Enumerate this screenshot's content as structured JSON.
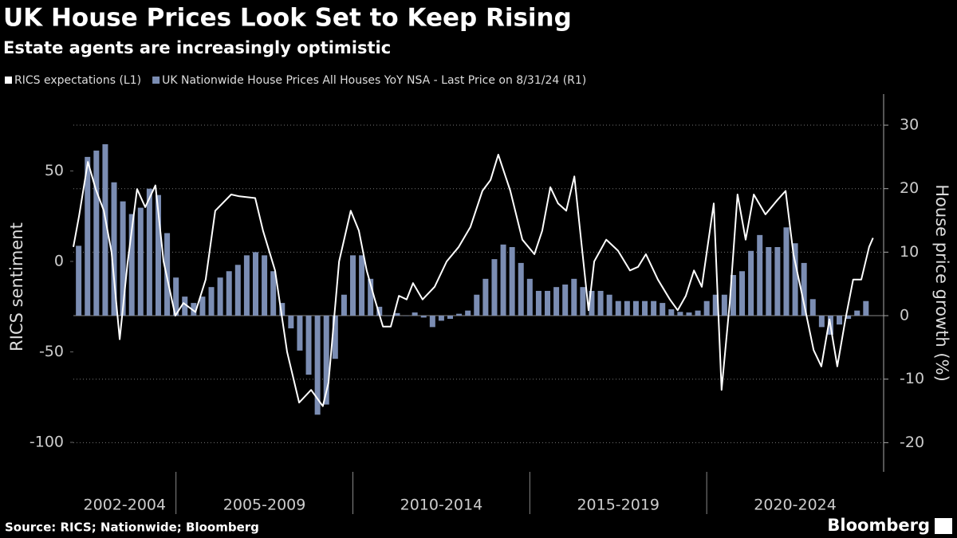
{
  "chart_data": {
    "type": "combo",
    "title": "UK House Prices Look Set to Keep Rising",
    "subtitle": "Estate agents are increasingly optimistic",
    "ylabel": "RICS sentiment",
    "y2label": "House price growth (%)",
    "source": "Source: RICS; Nationwide; Bloomberg",
    "brand": "Bloomberg",
    "xlim": [
      2002.1,
      2025.0
    ],
    "ylim": [
      -116.3,
      92.5
    ],
    "yticks": [
      -100,
      -50,
      0,
      50
    ],
    "y2lim": [
      -24.6,
      34.9
    ],
    "y2ticks": [
      -20,
      -10,
      0,
      10,
      20,
      30
    ],
    "grid": true,
    "x_groups": [
      {
        "label": "2002-2004",
        "range": [
          2002.1,
          2005
        ]
      },
      {
        "label": "2005-2009",
        "range": [
          2005,
          2010
        ]
      },
      {
        "label": "2010-2014",
        "range": [
          2010,
          2015
        ]
      },
      {
        "label": "2015-2019",
        "range": [
          2015,
          2020
        ]
      },
      {
        "label": "2020-2024",
        "range": [
          2020,
          2025
        ]
      }
    ],
    "series": [
      {
        "name": "RICS expectations (L1)",
        "type": "line",
        "axis": "y",
        "color": "#ffffff",
        "x": [
          2002.1,
          2002.26,
          2002.51,
          2002.73,
          2002.96,
          2003.18,
          2003.41,
          2003.63,
          2003.9,
          2004.13,
          2004.42,
          2004.65,
          2004.98,
          2005.21,
          2005.55,
          2005.84,
          2006.11,
          2006.56,
          2006.79,
          2007.24,
          2007.46,
          2007.8,
          2008.14,
          2008.48,
          2008.82,
          2009.15,
          2009.31,
          2009.61,
          2009.94,
          2010.17,
          2010.39,
          2010.62,
          2010.85,
          2011.07,
          2011.3,
          2011.52,
          2011.7,
          2011.97,
          2012.31,
          2012.65,
          2012.99,
          2013.32,
          2013.66,
          2013.89,
          2014.11,
          2014.45,
          2014.79,
          2015.13,
          2015.35,
          2015.58,
          2015.8,
          2016.03,
          2016.26,
          2016.66,
          2016.82,
          2017.16,
          2017.49,
          2017.83,
          2018.06,
          2018.28,
          2018.62,
          2018.96,
          2019.18,
          2019.41,
          2019.64,
          2019.86,
          2020.2,
          2020.42,
          2020.65,
          2020.87,
          2021.1,
          2021.33,
          2021.66,
          2022.0,
          2022.23,
          2022.45,
          2022.79,
          2023.02,
          2023.24,
          2023.47,
          2023.69,
          2023.92,
          2024.14,
          2024.37,
          2024.59,
          2024.7
        ],
        "values": [
          8,
          25,
          55,
          40,
          28,
          5,
          -43,
          -1,
          40,
          30,
          42,
          0,
          -30,
          -23,
          -28,
          -10,
          28,
          37,
          36,
          35,
          17,
          -5,
          -50,
          -78,
          -71,
          -80,
          -67,
          0,
          28,
          17,
          -5,
          -21,
          -36,
          -36,
          -19,
          -21,
          -12,
          -21,
          -14,
          0,
          8,
          19,
          39,
          45,
          59,
          39,
          12,
          4,
          17,
          41,
          32,
          28,
          47,
          -27,
          0,
          12,
          6,
          -5,
          -3,
          4,
          -10,
          -21,
          -27,
          -19,
          -5,
          -14,
          32,
          -71,
          -23,
          37,
          12,
          37,
          26,
          34,
          39,
          4,
          -27,
          -49,
          -58,
          -32,
          -58,
          -32,
          -10,
          -10,
          8,
          13
        ]
      },
      {
        "name": "UK Nationwide House Prices All Houses YoY NSA - Last Price on 8/31/24 (R1)",
        "type": "bar",
        "axis": "y2",
        "color": "#7b8db3",
        "x": [
          2002.25,
          2002.5,
          2002.75,
          2003.0,
          2003.25,
          2003.5,
          2003.75,
          2004.0,
          2004.25,
          2004.5,
          2004.75,
          2005.0,
          2005.25,
          2005.5,
          2005.75,
          2006.0,
          2006.25,
          2006.5,
          2006.75,
          2007.0,
          2007.25,
          2007.5,
          2007.75,
          2008.0,
          2008.25,
          2008.5,
          2008.75,
          2009.0,
          2009.25,
          2009.5,
          2009.75,
          2010.0,
          2010.25,
          2010.5,
          2010.75,
          2011.0,
          2011.25,
          2011.5,
          2011.75,
          2012.0,
          2012.25,
          2012.5,
          2012.75,
          2013.0,
          2013.25,
          2013.5,
          2013.75,
          2014.0,
          2014.25,
          2014.5,
          2014.75,
          2015.0,
          2015.25,
          2015.5,
          2015.75,
          2016.0,
          2016.25,
          2016.5,
          2016.75,
          2017.0,
          2017.25,
          2017.5,
          2017.75,
          2018.0,
          2018.25,
          2018.5,
          2018.75,
          2019.0,
          2019.25,
          2019.5,
          2019.75,
          2020.0,
          2020.25,
          2020.5,
          2020.75,
          2021.0,
          2021.25,
          2021.5,
          2021.75,
          2022.0,
          2022.25,
          2022.5,
          2022.75,
          2023.0,
          2023.25,
          2023.5,
          2023.75,
          2024.0,
          2024.25,
          2024.5
        ],
        "values": [
          11,
          25,
          26,
          27,
          21,
          18,
          16,
          17,
          20,
          19,
          13,
          6,
          3,
          2,
          3,
          4.5,
          6,
          7,
          8,
          9.5,
          10,
          9.5,
          7,
          2,
          -2,
          -5.5,
          -9.3,
          -15.6,
          -14,
          -6.8,
          3.3,
          9.5,
          9.5,
          5.8,
          1.4,
          0,
          0.4,
          0,
          0.5,
          -0.3,
          -1.8,
          -0.8,
          -0.5,
          0.3,
          0.8,
          3.3,
          5.8,
          8.9,
          11.2,
          10.8,
          8.3,
          5.8,
          3.9,
          3.9,
          4.5,
          4.9,
          5.8,
          4.5,
          3.9,
          3.9,
          3.3,
          2.3,
          2.3,
          2.3,
          2.3,
          2.3,
          2,
          1,
          0.6,
          0.5,
          0.8,
          2.3,
          3.3,
          3.3,
          6.4,
          7,
          10.2,
          12.7,
          10.8,
          10.8,
          13.9,
          11.4,
          8.3,
          2.6,
          -1.8,
          -3,
          -1.4,
          -0.5,
          0.8,
          2.3
        ]
      }
    ]
  }
}
